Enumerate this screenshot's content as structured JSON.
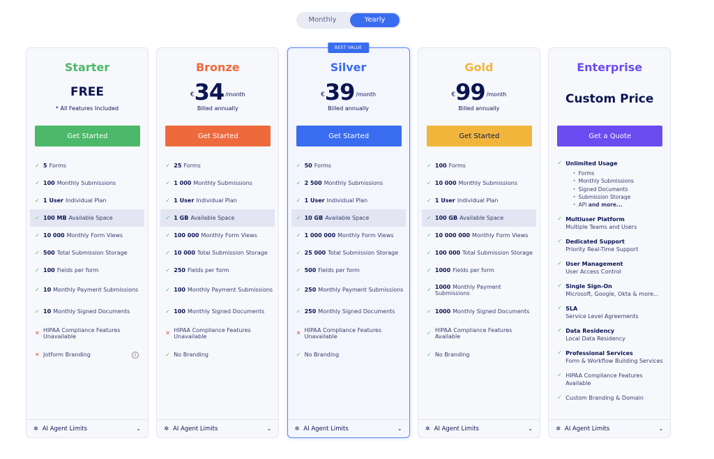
{
  "toggle": {
    "options": [
      "Monthly",
      "Yearly"
    ],
    "active": 1
  },
  "plans": [
    {
      "name": "Starter",
      "color": "#4cb86a",
      "price": "FREE",
      "note": "* All Features Included",
      "button": "Get Started",
      "features": [
        {
          "mark": "check",
          "bold": "5",
          "text": "Forms"
        },
        {
          "mark": "check",
          "bold": "100",
          "text": "Monthly Submissions"
        },
        {
          "mark": "check",
          "bold": "1 User",
          "text": "Individual Plan"
        },
        {
          "mark": "check",
          "bold": "100 MB",
          "text": "Available Space",
          "highlight": true
        },
        {
          "mark": "check",
          "bold": "10 000",
          "text": "Monthly Form Views"
        },
        {
          "mark": "check",
          "bold": "500",
          "text": "Total Submission Storage"
        },
        {
          "mark": "check",
          "bold": "100",
          "text": "Fields per form"
        },
        {
          "mark": "check",
          "bold": "10",
          "text": "Monthly Payment Submissions"
        },
        {
          "mark": "check",
          "bold": "10",
          "text": "Monthly Signed Documents"
        },
        {
          "mark": "cross",
          "text": "HIPAA Compliance Features Unavailable"
        },
        {
          "mark": "cross",
          "text": "Jotform Branding",
          "info": true
        }
      ],
      "footer": "AI Agent Limits"
    },
    {
      "name": "Bronze",
      "color": "#ee6a3c",
      "currency": "€",
      "price": 34,
      "period": "/month",
      "note": "Billed annually",
      "button": "Get Started",
      "features": [
        {
          "mark": "check",
          "bold": "25",
          "text": "Forms"
        },
        {
          "mark": "check",
          "bold": "1 000",
          "text": "Monthly Submissions"
        },
        {
          "mark": "check",
          "bold": "1 User",
          "text": "Individual Plan"
        },
        {
          "mark": "check",
          "bold": "1 GB",
          "text": "Available Space",
          "highlight": true
        },
        {
          "mark": "check",
          "bold": "100 000",
          "text": "Monthly Form Views"
        },
        {
          "mark": "check",
          "bold": "10 000",
          "text": "Total Submission Storage"
        },
        {
          "mark": "check",
          "bold": "250",
          "text": "Fields per form"
        },
        {
          "mark": "check",
          "bold": "100",
          "text": "Monthly Payment Submissions"
        },
        {
          "mark": "check",
          "bold": "100",
          "text": "Monthly Signed Documents"
        },
        {
          "mark": "cross",
          "text": "HIPAA Compliance Features Unavailable"
        },
        {
          "mark": "check",
          "text": "No Branding"
        }
      ],
      "footer": "AI Agent Limits"
    },
    {
      "name": "Silver",
      "color": "#3a6cf0",
      "badge": "BEST VALUE",
      "currency": "€",
      "price": 39,
      "period": "/month",
      "note": "Billed annually",
      "button": "Get Started",
      "features": [
        {
          "mark": "check",
          "bold": "50",
          "text": "Forms"
        },
        {
          "mark": "check",
          "bold": "2 500",
          "text": "Monthly Submissions"
        },
        {
          "mark": "check",
          "bold": "1 User",
          "text": "Individual Plan"
        },
        {
          "mark": "check",
          "bold": "10 GB",
          "text": "Available Space",
          "highlight": true
        },
        {
          "mark": "check",
          "bold": "1 000 000",
          "text": "Monthly Form Views"
        },
        {
          "mark": "check",
          "bold": "25 000",
          "text": "Total Submission Storage"
        },
        {
          "mark": "check",
          "bold": "500",
          "text": "Fields per form"
        },
        {
          "mark": "check",
          "bold": "250",
          "text": "Monthly Payment Submissions"
        },
        {
          "mark": "check",
          "bold": "250",
          "text": "Monthly Signed Documents"
        },
        {
          "mark": "cross",
          "text": "HIPAA Compliance Features Unavailable"
        },
        {
          "mark": "check",
          "text": "No Branding"
        }
      ],
      "footer": "AI Agent Limits"
    },
    {
      "name": "Gold",
      "color": "#f2b53c",
      "currency": "€",
      "price": 99,
      "period": "/month",
      "note": "Billed annually",
      "button": "Get Started",
      "features": [
        {
          "mark": "check",
          "bold": "100",
          "text": "Forms"
        },
        {
          "mark": "check",
          "bold": "10 000",
          "text": "Monthly Submissions"
        },
        {
          "mark": "check",
          "bold": "1 User",
          "text": "Individual Plan"
        },
        {
          "mark": "check",
          "bold": "100 GB",
          "text": "Available Space",
          "highlight": true
        },
        {
          "mark": "check",
          "bold": "10 000 000",
          "text": "Monthly Form Views"
        },
        {
          "mark": "check",
          "bold": "100 000",
          "text": "Total Submission Storage"
        },
        {
          "mark": "check",
          "bold": "1000",
          "text": "Fields per form"
        },
        {
          "mark": "check",
          "bold": "1000",
          "text": "Monthly Payment Submissions"
        },
        {
          "mark": "check",
          "bold": "1000",
          "text": "Monthly Signed Documents"
        },
        {
          "mark": "check",
          "text": "HIPAA Compliance Features Available"
        },
        {
          "mark": "check",
          "text": "No Branding"
        }
      ],
      "footer": "AI Agent Limits"
    },
    {
      "name": "Enterprise",
      "color": "#6a4cf0",
      "price": "Custom Price",
      "button": "Get a Quote",
      "features": [
        {
          "mark": "check",
          "title": "Unlimited Usage",
          "items": [
            "Forms",
            "Monthly Submissions",
            "Signed Documents",
            "Submission Storage",
            {
              "text": "API",
              "bold": "and more..."
            }
          ]
        },
        {
          "mark": "check",
          "title": "Multiuser Platform",
          "subtitle": "Multiple Teams and Users"
        },
        {
          "mark": "check",
          "title": "Dedicated Support",
          "subtitle": "Priority Real-Time Support"
        },
        {
          "mark": "check",
          "title": "User Management",
          "subtitle": "User Access Control"
        },
        {
          "mark": "check",
          "title": "Single Sign-On",
          "subtitle": "Microsoft, Google, Okta & more..."
        },
        {
          "mark": "check",
          "title": "SLA",
          "subtitle": "Service Level Agreements"
        },
        {
          "mark": "check",
          "title": "Data Residency",
          "subtitle": "Local Data Residency"
        },
        {
          "mark": "check",
          "title": "Professional Services",
          "subtitle": "Form & Workflow Building Services"
        },
        {
          "mark": "check",
          "subtitle": "HIPAA Compliance Features Available"
        },
        {
          "mark": "check",
          "subtitle": "Custom Branding & Domain"
        }
      ],
      "footer": "AI Agent Limits"
    }
  ]
}
